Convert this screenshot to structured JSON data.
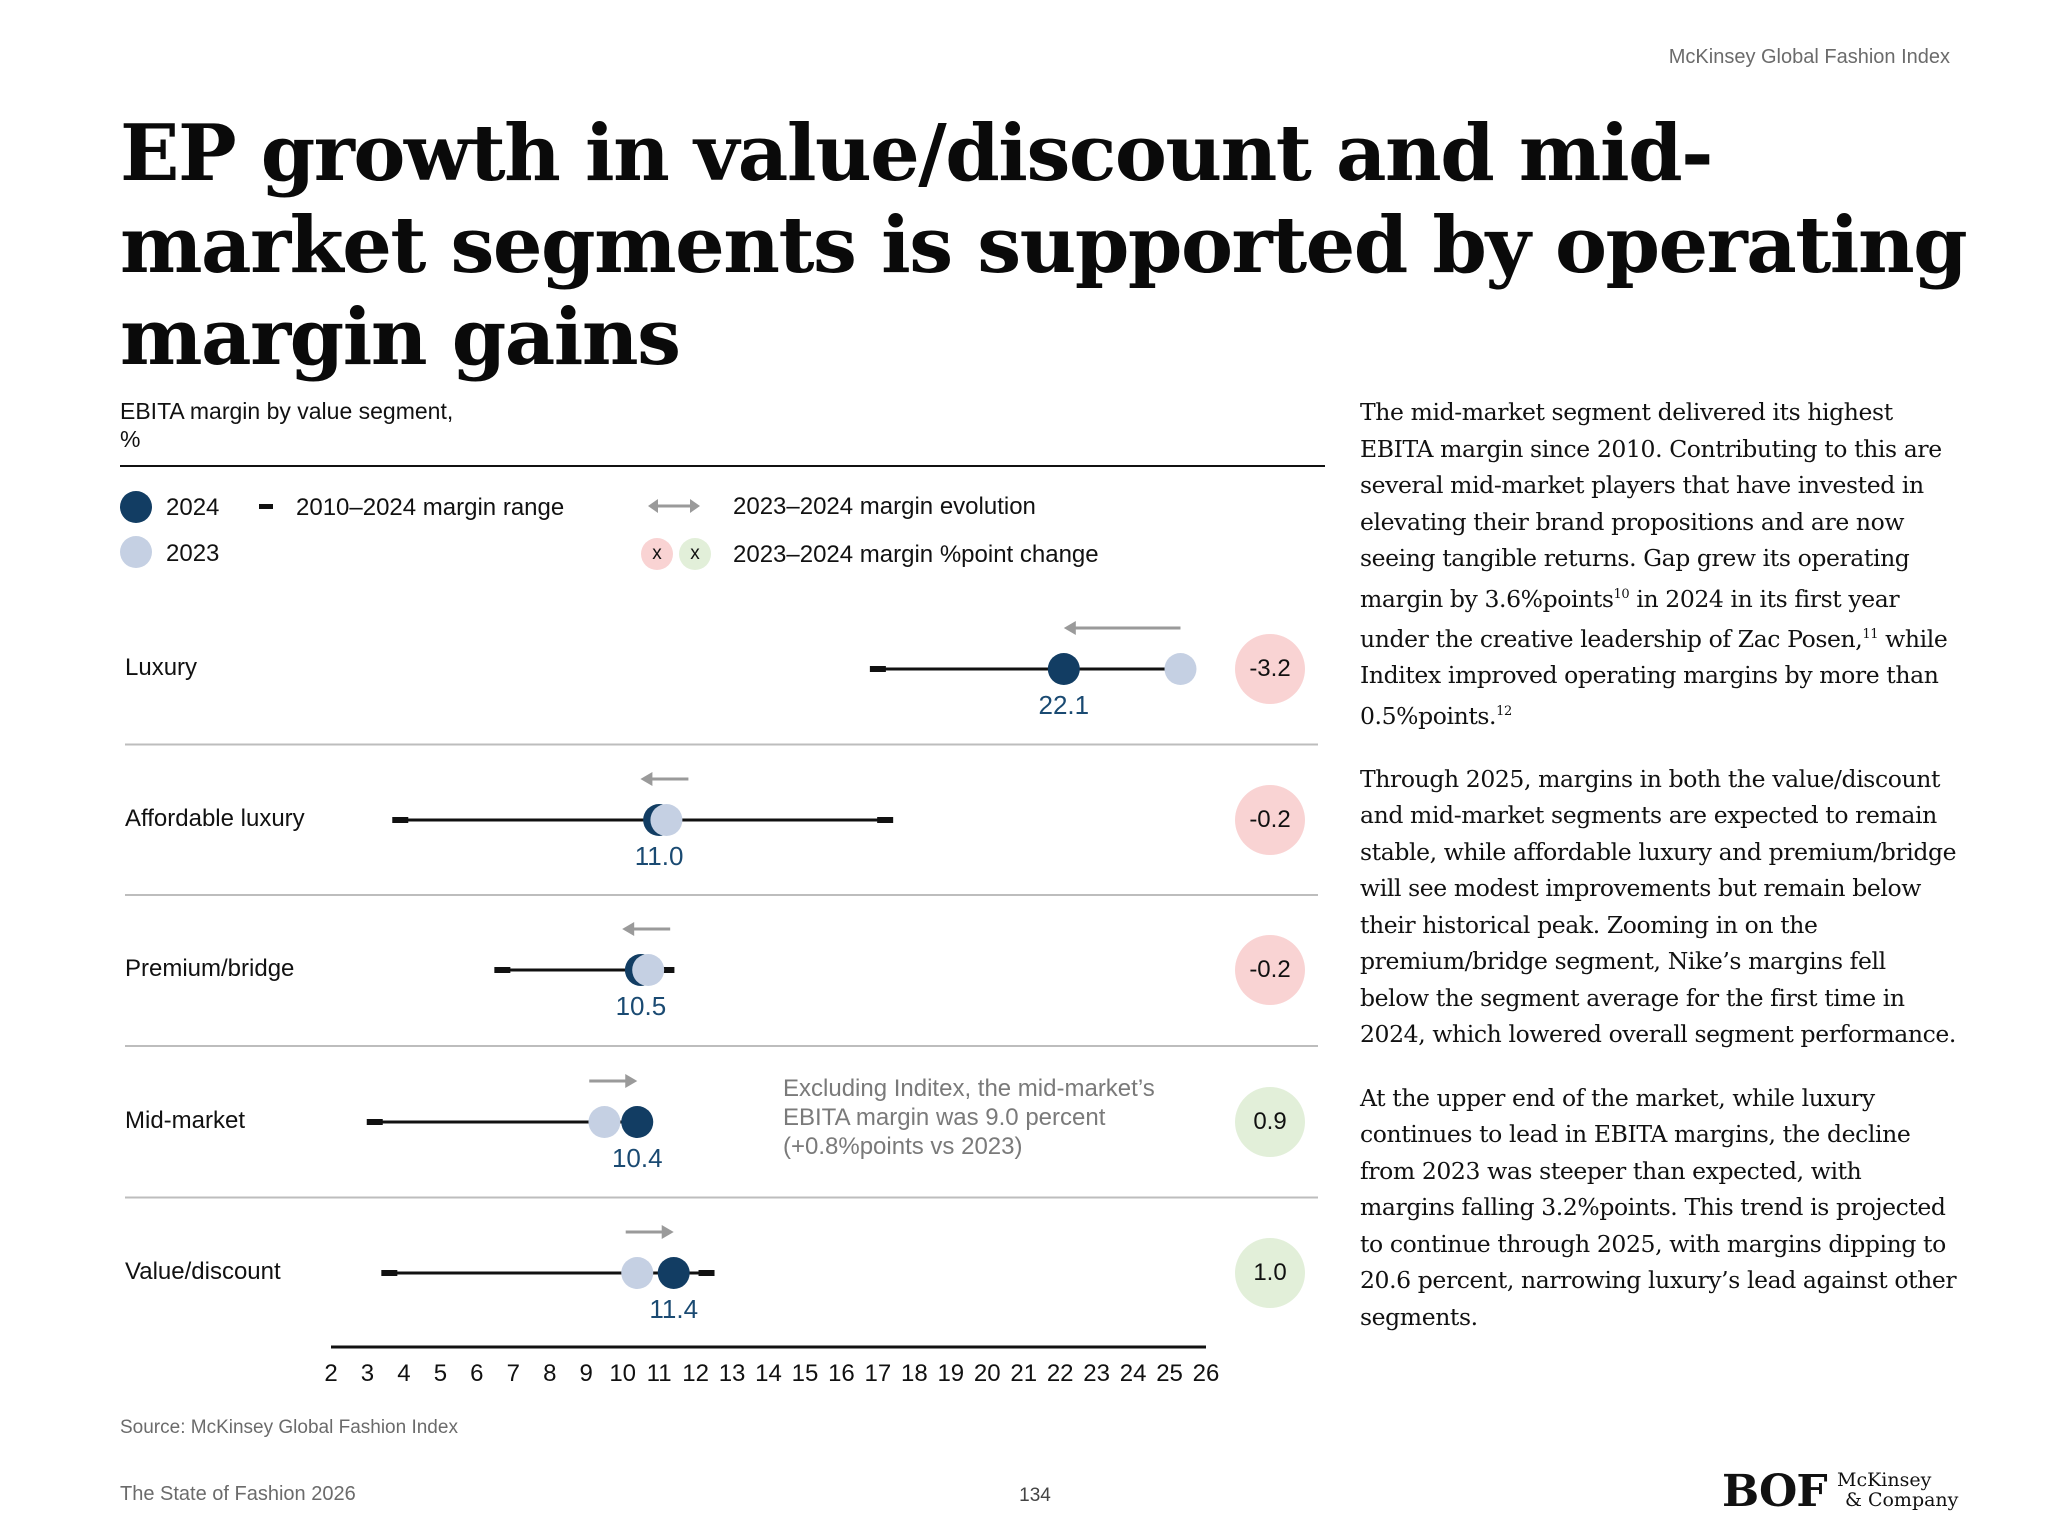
{
  "header": {
    "label": "McKinsey Global Fashion Index"
  },
  "title": "EP growth in value/discount and mid-market segments is supported by operating margin gains",
  "legend": {
    "y2024": "2024",
    "y2023": "2023",
    "range": "2010–2024 margin range",
    "evolution": "2023–2024 margin evolution",
    "change": "2023–2024 margin %point change",
    "x_mark": "x"
  },
  "colors": {
    "y2024": "#123d63",
    "y2023": "#c5d0e3",
    "negative_badge": "#f9d3d3",
    "positive_badge": "#e2efd9",
    "arrow": "#9a9a9a"
  },
  "chart_data": {
    "type": "dot-range",
    "title": "EBITA margin by value segment,",
    "unit": "%",
    "xlim": [
      2,
      26
    ],
    "x_ticks": [
      2,
      3,
      4,
      5,
      6,
      7,
      8,
      9,
      10,
      11,
      12,
      13,
      14,
      15,
      16,
      17,
      18,
      19,
      20,
      21,
      22,
      23,
      24,
      25,
      26
    ],
    "series_names": [
      "2024",
      "2023"
    ],
    "rows": [
      {
        "label": "Luxury",
        "v2024": 22.1,
        "v2023": 25.3,
        "range_min": 17.0,
        "range_max": 25.5,
        "value_label": "22.1",
        "change": "-3.2",
        "direction": "negative"
      },
      {
        "label": "Affordable luxury",
        "v2024": 11.0,
        "v2023": 11.2,
        "range_min": 3.9,
        "range_max": 17.2,
        "value_label": "11.0",
        "change": "-0.2",
        "direction": "negative"
      },
      {
        "label": "Premium/bridge",
        "v2024": 10.5,
        "v2023": 10.7,
        "range_min": 6.7,
        "range_max": 11.2,
        "value_label": "10.5",
        "change": "-0.2",
        "direction": "negative"
      },
      {
        "label": "Mid-market",
        "v2024": 10.4,
        "v2023": 9.5,
        "range_min": 3.2,
        "range_max": 10.5,
        "value_label": "10.4",
        "change": "0.9",
        "direction": "positive"
      },
      {
        "label": "Value/discount",
        "v2024": 11.4,
        "v2023": 10.4,
        "range_min": 3.6,
        "range_max": 12.3,
        "value_label": "11.4",
        "change": "1.0",
        "direction": "positive"
      }
    ],
    "annotation": "Excluding Inditex, the mid-market’s EBITA margin was 9.0 percent (+0.8%points vs 2023)"
  },
  "sidebar": {
    "p1": {
      "a": "The mid-market segment delivered its highest EBITA margin since 2010. Contributing to this are several mid-market players that have invested in elevating their brand propositions and are now seeing tangible returns. Gap grew its operating margin by 3.6%points",
      "sup1": "10",
      "b": " in 2024 in its first year under the creative leadership of Zac Posen,",
      "sup2": "11",
      "c": " while Inditex improved operating margins by more than 0.5%points.",
      "sup3": "12"
    },
    "p2": "Through 2025, margins in both the value/discount and mid-market segments are expected to remain stable, while affordable luxury and premium/bridge will see modest improvements but remain below their historical peak. Zooming in on the premium/bridge segment, Nike’s margins fell below the segment average for the first time in 2024, which lowered overall segment performance.",
    "p3": "At the upper end of the market, while luxury continues to lead in EBITA margins, the decline from 2023 was steeper than expected, with margins falling 3.2%points. This trend is projected to continue through 2025, with margins dipping to 20.6 percent, narrowing luxury’s lead against other segments."
  },
  "footer": {
    "source": "Source: McKinsey Global Fashion Index",
    "publication": "The State of Fashion 2026",
    "page": "134",
    "logo_bof": "BOF",
    "logo_mck_line1": "McKinsey",
    "logo_mck_line2": "& Company"
  }
}
